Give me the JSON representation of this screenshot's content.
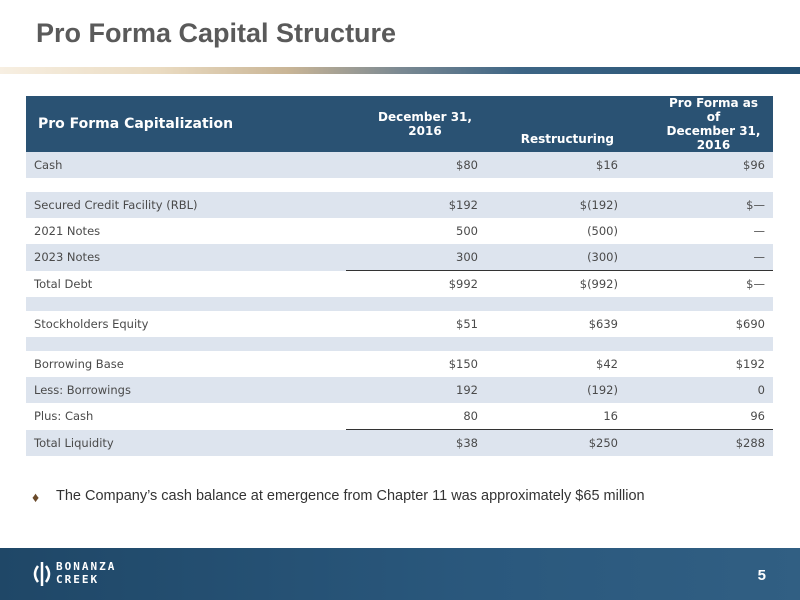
{
  "slide": {
    "title": "Pro Forma Capital Structure",
    "bullet_glyph": "♦",
    "bullet_text": "The Company’s cash balance at emergence from Chapter 11 was approximately $65 million",
    "page_number": "5"
  },
  "logo": {
    "line1": "BONANZA",
    "line2": "CREEK"
  },
  "table": {
    "headers": {
      "label": "Pro Forma Capitalization",
      "col1_line1": "December 31,",
      "col1_line2": "2016",
      "col2": "Restructuring",
      "col3_line1": "Pro Forma as of",
      "col3_line2": "December 31, 2016"
    },
    "rows": [
      {
        "label": "Cash",
        "c1": "$80",
        "c2": "$16",
        "c3": "$96"
      },
      {
        "label": "Secured Credit Facility (RBL)",
        "c1": "$192",
        "c2": "$(192)",
        "c3": "$—"
      },
      {
        "label": "2021 Notes",
        "c1": "500",
        "c2": "(500)",
        "c3": "—"
      },
      {
        "label": "2023 Notes",
        "c1": "300",
        "c2": "(300)",
        "c3": "—"
      },
      {
        "label": "Total Debt",
        "c1": "$992",
        "c2": "$(992)",
        "c3": "$—"
      },
      {
        "label": "Stockholders Equity",
        "c1": "$51",
        "c2": "$639",
        "c3": "$690"
      },
      {
        "label": "Borrowing Base",
        "c1": "$150",
        "c2": "$42",
        "c3": "$192"
      },
      {
        "label": "Less: Borrowings",
        "c1": "192",
        "c2": "(192)",
        "c3": "0"
      },
      {
        "label": "Plus: Cash",
        "c1": "80",
        "c2": "16",
        "c3": "96"
      },
      {
        "label": "Total Liquidity",
        "c1": "$38",
        "c2": "$250",
        "c3": "$288"
      }
    ]
  }
}
